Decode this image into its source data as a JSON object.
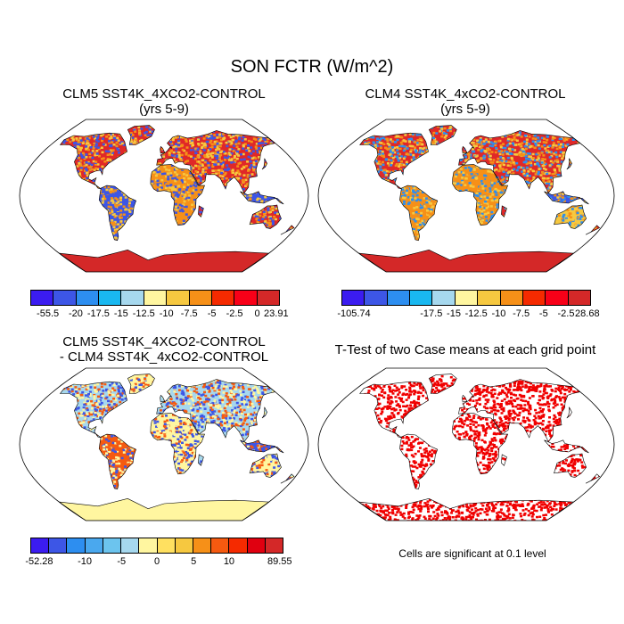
{
  "title": "SON FCTR (W/m^2)",
  "panels": {
    "p1": {
      "title_line1": "CLM5 SST4K_4XCO2-CONTROL",
      "title_line2": "(yrs 5-9)",
      "colors": [
        "#3b1cf0",
        "#3d56e6",
        "#2d8ef0",
        "#19b8f0",
        "#a6d8ee",
        "#fff6a0",
        "#f6c840",
        "#f69018",
        "#f52a00",
        "#f80018",
        "#d42828"
      ],
      "tick_labels": [
        "-55.5",
        "-20",
        "-17.5",
        "-15",
        "-12.5",
        "-10",
        "-7.5",
        "-5",
        "-2.5",
        "0",
        "23.91"
      ]
    },
    "p2": {
      "title_line1": "CLM4 SST4K_4xCO2-CONTROL",
      "title_line2": "(yrs 5-9)",
      "colors": [
        "#3b1cf0",
        "#3d56e6",
        "#2d8ef0",
        "#19b8f0",
        "#a6d8ee",
        "#fff6a0",
        "#f6c840",
        "#f69018",
        "#f52a00",
        "#f80018",
        "#d42828"
      ],
      "tick_labels": [
        "-105.74",
        "-17.5",
        "-15",
        "-12.5",
        "-10",
        "-7.5",
        "-5",
        "-2.5",
        "28.68"
      ]
    },
    "p3": {
      "title_line1": "CLM5 SST4K_4XCO2-CONTROL",
      "title_line2": "- CLM4 SST4K_4xCO2-CONTROL",
      "colors": [
        "#3b1cf0",
        "#3d56e6",
        "#2d8ef0",
        "#4aa8ee",
        "#6cc4ee",
        "#a6d8ee",
        "#fff6a0",
        "#ffe060",
        "#f6c840",
        "#f69018",
        "#f55a10",
        "#f52a00",
        "#e00010",
        "#d42828"
      ],
      "tick_labels": [
        "-52.28",
        "-10",
        "-5",
        "0",
        "5",
        "10",
        "89.55"
      ]
    },
    "p4": {
      "title_line1": "T-Test of two Case means at each grid point",
      "note": "Cells are significant at 0.1 level"
    }
  }
}
